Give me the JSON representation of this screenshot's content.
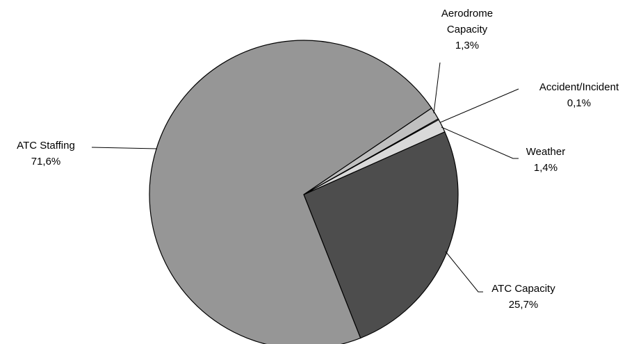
{
  "chart_data": {
    "type": "pie",
    "categories": [
      "ATC Capacity",
      "ATC Staffing",
      "Aerodrome Capacity",
      "Accident/Incident",
      "Weather"
    ],
    "values": [
      25.7,
      71.6,
      1.3,
      0.1,
      1.4
    ],
    "value_labels": [
      "25,7%",
      "71,6%",
      "1,3%",
      "0,1%",
      "1,4%"
    ],
    "colors": [
      "#4d4d4d",
      "#969696",
      "#c0c0c0",
      "#ffffff",
      "#d9d9d9"
    ]
  }
}
